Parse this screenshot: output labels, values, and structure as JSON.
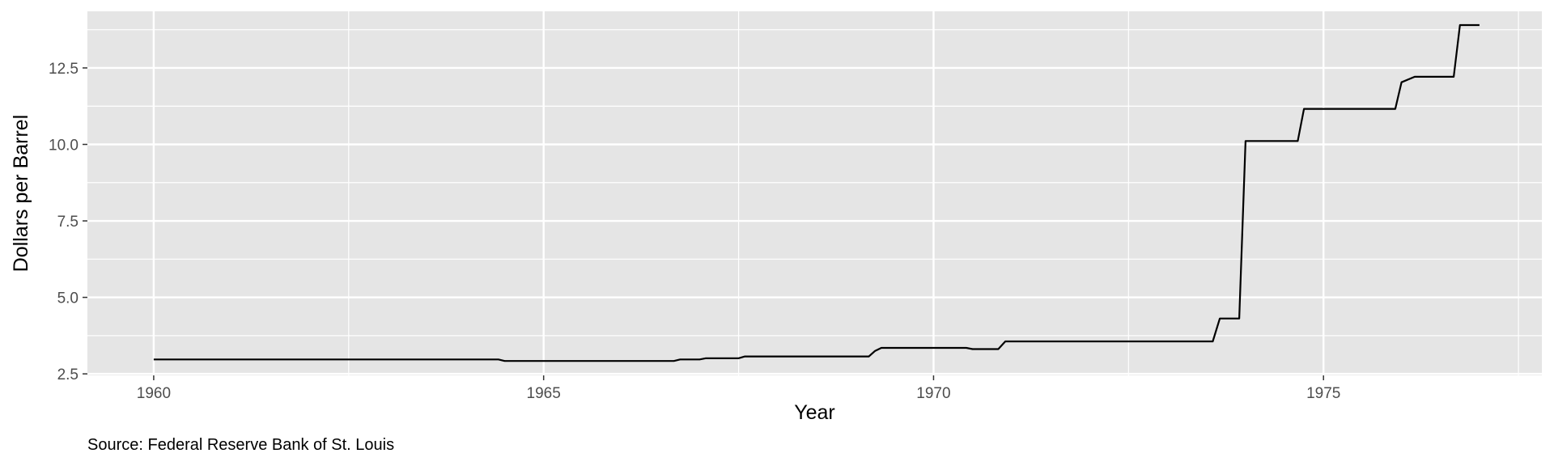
{
  "chart_data": {
    "type": "line",
    "title": "",
    "xlabel": "Year",
    "ylabel": "Dollars per Barrel",
    "caption": "Source: Federal Reserve Bank of St. Louis",
    "xlim": [
      1959.15,
      1977.8
    ],
    "ylim": [
      2.45,
      14.35
    ],
    "x_ticks": [
      1960,
      1965,
      1970,
      1975
    ],
    "x_tick_labels": [
      "1960",
      "1965",
      "1970",
      "1975"
    ],
    "x_minor_ticks": [
      1962.5,
      1967.5,
      1972.5,
      1977.5
    ],
    "y_ticks": [
      2.5,
      5.0,
      7.5,
      10.0,
      12.5
    ],
    "y_tick_labels": [
      "2.5",
      "5.0",
      "7.5",
      "10.0",
      "12.5"
    ],
    "y_minor_ticks": [
      3.75,
      6.25,
      8.75,
      11.25,
      13.75
    ],
    "grid": true,
    "colors": {
      "panel": "#e5e5e5",
      "grid": "#ffffff",
      "line": "#000000"
    },
    "series": [
      {
        "x": [
          1960.0,
          1964.42,
          1964.5,
          1966.67,
          1966.75,
          1967.0,
          1967.08,
          1967.5,
          1967.58,
          1969.17,
          1969.25,
          1969.33,
          1970.42,
          1970.5,
          1970.83,
          1970.92,
          1973.58,
          1973.67,
          1973.92,
          1974.0,
          1974.67,
          1974.75,
          1975.92,
          1976.0,
          1976.17,
          1976.67,
          1976.75,
          1977.0
        ],
        "y": [
          2.97,
          2.97,
          2.92,
          2.92,
          2.97,
          2.97,
          3.01,
          3.01,
          3.07,
          3.07,
          3.25,
          3.35,
          3.35,
          3.31,
          3.31,
          3.56,
          3.56,
          4.31,
          4.31,
          10.11,
          10.11,
          11.16,
          11.16,
          12.03,
          12.21,
          12.21,
          13.9,
          13.9
        ]
      }
    ]
  }
}
